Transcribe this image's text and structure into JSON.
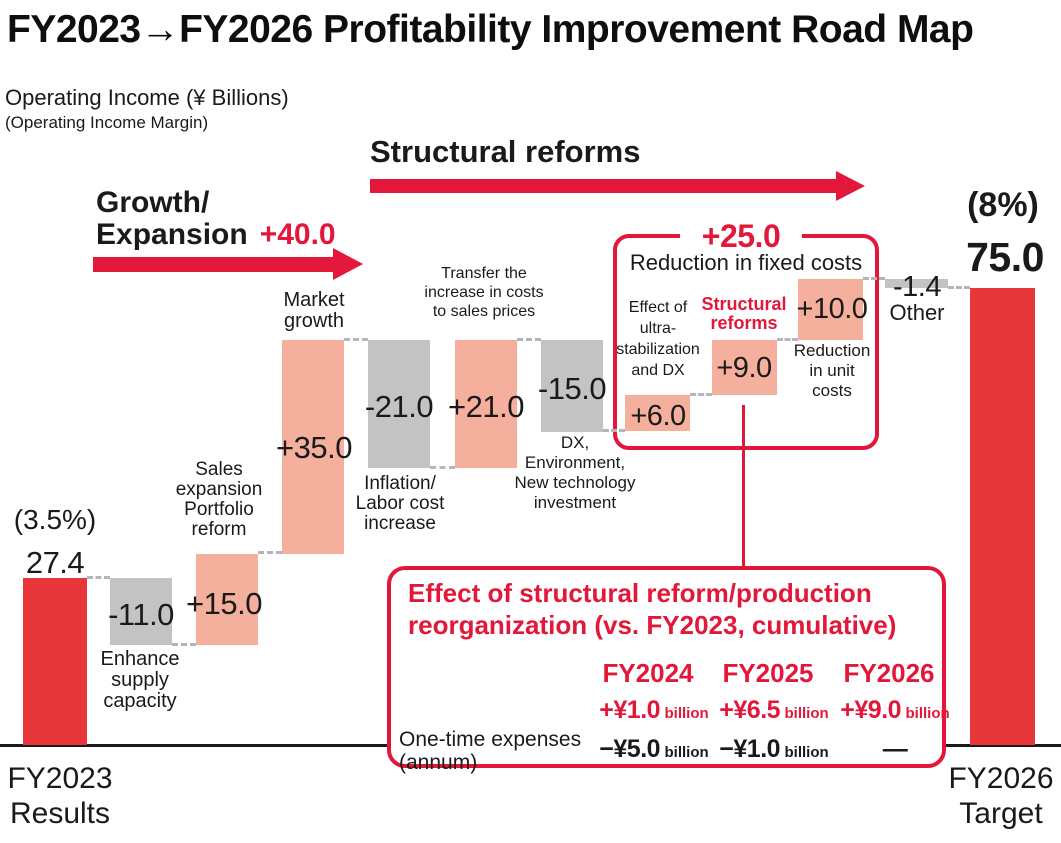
{
  "header": {
    "title": "FY2023→FY2026 Profitability Improvement Road Map",
    "unit": "Operating Income (¥ Billions)",
    "unit_sub": "(Operating Income Margin)"
  },
  "annotations": {
    "growth": {
      "line1": "Growth/",
      "line2": "Expansion",
      "delta": "+40.0"
    },
    "structural": {
      "label": "Structural reforms"
    }
  },
  "chart_data": {
    "type": "waterfall",
    "title": "FY2023→FY2026 Profitability Improvement Road Map",
    "ylabel": "Operating Income (¥ Billions)",
    "ylabel_sub": "(Operating Income Margin)",
    "ylim": [
      0,
      80
    ],
    "grid": false,
    "bars": [
      {
        "id": "fy2023",
        "label": "FY2023 Results",
        "kind": "total",
        "value": 27.4,
        "start": 0,
        "end": 27.4,
        "value_label": "27.4",
        "margin_label": "(3.5%)",
        "color": "bar_red"
      },
      {
        "id": "supply",
        "label": "Enhance supply capacity",
        "label_lines": [
          "Enhance",
          "supply",
          "capacity"
        ],
        "kind": "decrease",
        "value": -11.0,
        "start": 27.4,
        "end": 16.4,
        "value_label": "-11.0",
        "color": "bar_gray"
      },
      {
        "id": "sales",
        "label": "Sales expansion Portfolio reform",
        "label_lines": [
          "Sales",
          "expansion",
          "Portfolio",
          "reform"
        ],
        "kind": "increase",
        "value": 15.0,
        "start": 16.4,
        "end": 31.4,
        "value_label": "+15.0",
        "color": "bar_salmon"
      },
      {
        "id": "market",
        "label": "Market growth",
        "label_lines": [
          "Market",
          "growth"
        ],
        "kind": "increase",
        "value": 35.0,
        "start": 31.4,
        "end": 66.4,
        "value_label": "+35.0",
        "color": "bar_salmon"
      },
      {
        "id": "inflation",
        "label": "Inflation/ Labor cost increase",
        "label_lines": [
          "Inflation/",
          "Labor cost",
          "increase"
        ],
        "kind": "decrease",
        "value": -21.0,
        "start": 66.4,
        "end": 45.4,
        "value_label": "-21.0",
        "color": "bar_gray"
      },
      {
        "id": "transfer",
        "label": "Transfer the increase in costs to sales prices",
        "label_lines": [
          "Transfer the",
          "increase in costs",
          "to sales prices"
        ],
        "kind": "increase",
        "value": 21.0,
        "start": 45.4,
        "end": 66.4,
        "value_label": "+21.0",
        "color": "bar_salmon"
      },
      {
        "id": "dx",
        "label": "DX, Environment, New technology investment",
        "label_lines": [
          "DX,",
          "Environment,",
          "New technology",
          "investment"
        ],
        "kind": "decrease",
        "value": -15.0,
        "start": 66.4,
        "end": 51.4,
        "value_label": "-15.0",
        "color": "bar_gray"
      },
      {
        "id": "ultra",
        "label": "Effect of ultra-stabilization and DX",
        "label_lines": [
          "Effect of",
          "ultra-",
          "stabilization",
          "and DX"
        ],
        "kind": "increase",
        "value": 6.0,
        "start": 51.4,
        "end": 57.4,
        "value_label": "+6.0",
        "color": "bar_salmon"
      },
      {
        "id": "reforms",
        "label": "Structural reforms",
        "label_lines": [
          "Structural",
          "reforms"
        ],
        "kind": "increase",
        "value": 9.0,
        "start": 57.4,
        "end": 66.4,
        "value_label": "+9.0",
        "color": "bar_salmon"
      },
      {
        "id": "unitcost",
        "label": "Reduction in unit costs",
        "label_lines": [
          "Reduction",
          "in unit",
          "costs"
        ],
        "kind": "increase",
        "value": 10.0,
        "start": 66.4,
        "end": 76.4,
        "value_label": "+10.0",
        "color": "bar_salmon"
      },
      {
        "id": "other",
        "label": "Other",
        "label_lines": [
          "Other"
        ],
        "kind": "decrease",
        "value": -1.4,
        "start": 76.4,
        "end": 75.0,
        "value_label": "-1.4",
        "color": "bar_gray"
      },
      {
        "id": "fy2026",
        "label": "FY2026 Target",
        "kind": "total",
        "value": 75.0,
        "start": 0,
        "end": 75.0,
        "value_label": "75.0",
        "margin_label": "(8%)",
        "color": "bar_red"
      }
    ]
  },
  "fixed_costs_box": {
    "delta": "+25.0",
    "title": "Reduction in fixed costs"
  },
  "effect_box": {
    "title_lines": [
      "Effect of structural reform/production",
      "reorganization (vs. FY2023, cumulative)"
    ],
    "columns": [
      "FY2024",
      "FY2025",
      "FY2026"
    ],
    "cumulative_row": [
      {
        "value": "+¥1.0",
        "unit": "billion"
      },
      {
        "value": "+¥6.5",
        "unit": "billion"
      },
      {
        "value": "+¥9.0",
        "unit": "billion"
      }
    ],
    "one_time_label_lines": [
      "One-time expenses",
      "(annum)"
    ],
    "one_time_row": [
      {
        "value": "−¥5.0",
        "unit": "billion"
      },
      {
        "value": "−¥1.0",
        "unit": "billion"
      },
      {
        "value": "—",
        "unit": ""
      }
    ]
  },
  "x_axis": {
    "left_lines": [
      "FY2023",
      "Results"
    ],
    "right_lines": [
      "FY2026",
      "Target"
    ]
  },
  "colors": {
    "accent": "#e3173a",
    "bar_red": "#e8373a",
    "bar_salmon": "#f4af9d",
    "bar_gray": "#c3c3c3",
    "text": "#1a1a1a",
    "dash": "#b5b5b5"
  }
}
